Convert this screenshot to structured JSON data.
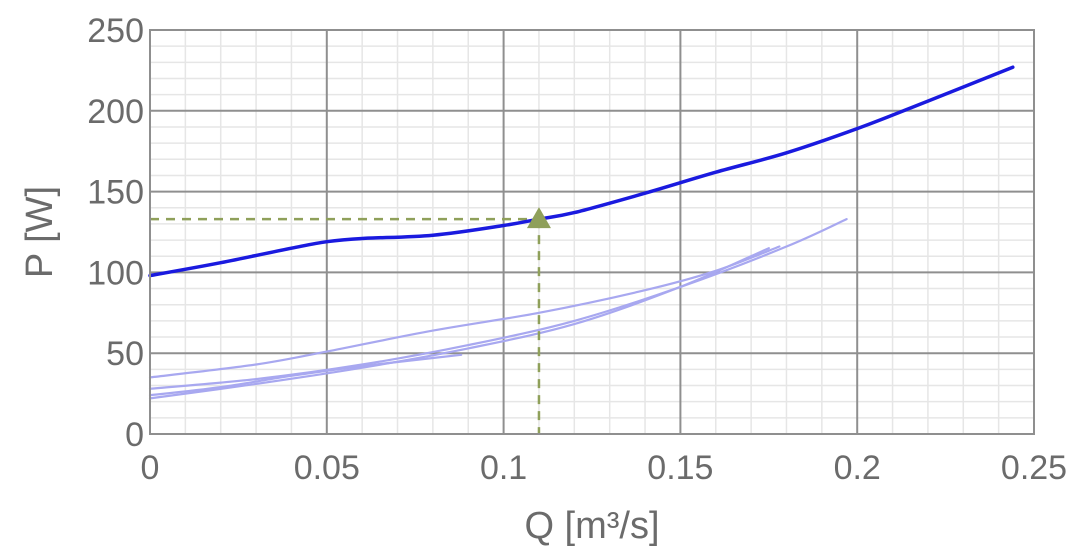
{
  "chart_data": {
    "type": "line",
    "title": "",
    "xlabel": "Q [m³/s]",
    "ylabel": "P [W]",
    "xlim": [
      0,
      0.25
    ],
    "ylim": [
      0,
      250
    ],
    "x_ticks": [
      0,
      0.05,
      0.1,
      0.15,
      0.2,
      0.25
    ],
    "x_tick_labels": [
      "0",
      "0.05",
      "0.1",
      "0.15",
      "0.2",
      "0.25"
    ],
    "y_ticks": [
      0,
      50,
      100,
      150,
      200,
      250
    ],
    "y_tick_labels": [
      "0",
      "50",
      "100",
      "150",
      "200",
      "250"
    ],
    "grid": true,
    "legend": "none",
    "series": [
      {
        "role": "main",
        "color": "#1a1adf",
        "x": [
          0,
          0.02,
          0.04,
          0.05,
          0.06,
          0.08,
          0.1,
          0.11,
          0.12,
          0.14,
          0.16,
          0.18,
          0.2,
          0.22,
          0.244
        ],
        "y": [
          98,
          106,
          115,
          119,
          121,
          123,
          129,
          133,
          137,
          149,
          162,
          174,
          189,
          206,
          227
        ]
      },
      {
        "role": "faint",
        "color": "#a8a8f0",
        "x": [
          0,
          0.03,
          0.06,
          0.09,
          0.12,
          0.15,
          0.18,
          0.197
        ],
        "y": [
          28,
          34,
          43,
          55,
          70,
          91,
          116,
          133
        ]
      },
      {
        "role": "faint",
        "color": "#a8a8f0",
        "x": [
          0,
          0.03,
          0.05,
          0.08,
          0.11,
          0.14,
          0.16,
          0.178
        ],
        "y": [
          35,
          43,
          51,
          64,
          75,
          89,
          101,
          116
        ]
      },
      {
        "role": "faint",
        "color": "#a8a8f0",
        "x": [
          0,
          0.03,
          0.06,
          0.09,
          0.12,
          0.15,
          0.175
        ],
        "y": [
          22,
          31,
          41,
          53,
          68,
          91,
          115
        ]
      },
      {
        "role": "faint",
        "color": "#a8a8f0",
        "x": [
          0,
          0.02,
          0.04,
          0.06,
          0.08,
          0.088
        ],
        "y": [
          24,
          29,
          36,
          42,
          47,
          49
        ]
      }
    ],
    "operating_point": {
      "x": 0.11,
      "y": 133,
      "color": "#8fa05a",
      "marker": "triangle"
    }
  }
}
